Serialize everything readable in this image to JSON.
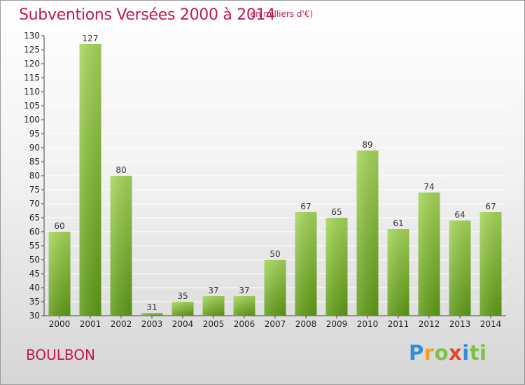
{
  "header": {
    "title": "Subventions Versées 2000 à 2014",
    "unit": "(en milliers d'€)"
  },
  "footer": {
    "city": "BOULBON",
    "logo": "Proxiti"
  },
  "colors": {
    "title": "#c2185b",
    "bar_light": "#a6d65a",
    "bar_dark": "#5e9a16",
    "grid": "#ffffff"
  },
  "chart_data": {
    "type": "bar",
    "title": "Subventions Versées 2000 à 2014",
    "ylabel": "",
    "xlabel": "",
    "ylim": [
      30,
      130
    ],
    "ystep": 5,
    "grid": true,
    "categories": [
      "2000",
      "2001",
      "2002",
      "2003",
      "2004",
      "2005",
      "2006",
      "2007",
      "2008",
      "2009",
      "2010",
      "2011",
      "2012",
      "2013",
      "2014"
    ],
    "values": [
      60,
      127,
      80,
      31,
      35,
      37,
      37,
      50,
      67,
      65,
      89,
      61,
      74,
      64,
      67
    ]
  }
}
